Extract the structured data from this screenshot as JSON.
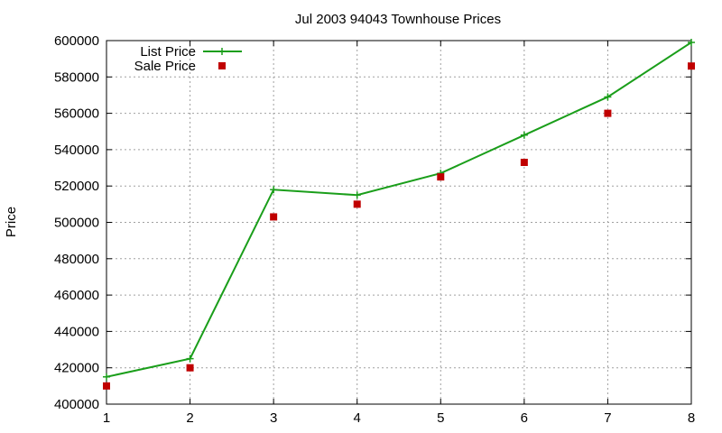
{
  "chart_data": {
    "type": "line",
    "title": "Jul 2003 94043 Townhouse Prices",
    "xlabel": "",
    "ylabel": "Price",
    "xlim": [
      1,
      8
    ],
    "ylim": [
      400000,
      600000
    ],
    "x_ticks": [
      "1",
      "2",
      "3",
      "4",
      "5",
      "6",
      "7",
      "8"
    ],
    "y_ticks": [
      "400000",
      "420000",
      "440000",
      "460000",
      "480000",
      "500000",
      "520000",
      "540000",
      "560000",
      "580000",
      "600000"
    ],
    "grid": true,
    "legend_position": "top-left",
    "x": [
      1,
      2,
      3,
      4,
      5,
      6,
      7,
      8
    ],
    "series": [
      {
        "name": "List Price",
        "style": "lines+points",
        "color": "#1a9e1a",
        "marker": "plus",
        "values": [
          415000,
          425000,
          518000,
          515000,
          527000,
          548000,
          569000,
          599000
        ]
      },
      {
        "name": "Sale Price",
        "style": "points",
        "color": "#c00000",
        "marker": "square",
        "values": [
          410000,
          420000,
          503000,
          510000,
          525000,
          533000,
          560000,
          586000
        ]
      }
    ]
  }
}
